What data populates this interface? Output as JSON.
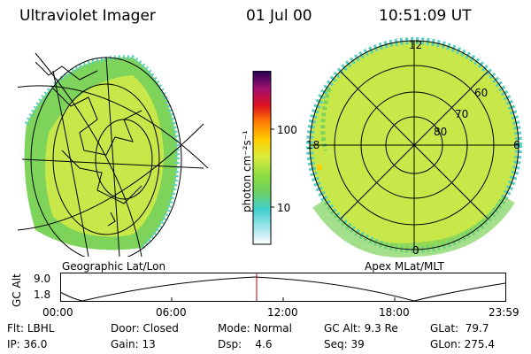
{
  "header": {
    "instrument": "Ultraviolet Imager",
    "date": "01 Jul 00",
    "time": "10:51:09 UT"
  },
  "colorbar": {
    "unit_label": "photon cm⁻²s⁻¹",
    "ticks": [
      "100",
      "10"
    ]
  },
  "left_panel": {
    "caption": "Geographic Lat/Lon"
  },
  "right_panel": {
    "caption": "Apex MLat/MLT",
    "mlt_labels": [
      "12",
      "18",
      "6",
      "0"
    ],
    "lat_labels": [
      "60",
      "70",
      "80"
    ]
  },
  "altitude_plot": {
    "ylabel": "GC Alt",
    "yticks": [
      "9.0",
      "1.8"
    ],
    "xticks": [
      "00:00",
      "06:00",
      "12:00",
      "18:00",
      "23:59"
    ],
    "current_marker": "10:51"
  },
  "info": {
    "flt_label": "Flt:",
    "flt": "LBHL",
    "ip_label": "IP:",
    "ip": "36.0",
    "door_label": "Door:",
    "door": "Closed",
    "gain_label": "Gain:",
    "gain": "13",
    "mode_label": "Mode:",
    "mode": "Normal",
    "dsp_label": "Dsp:",
    "dsp": "4.6",
    "gcalt_label": "GC Alt:",
    "gcalt": "9.3 Re",
    "seq_label": "Seq:",
    "seq": "39",
    "glat_label": "GLat:",
    "glat": "79.7",
    "glon_label": "GLon:",
    "glon": "275.4"
  },
  "colors": {
    "background": "#ffffff",
    "aurora_main": "#c8e84a",
    "aurora_green": "#7ed35a",
    "aurora_edge": "#5ad0c0",
    "marker": "#cc0000"
  }
}
